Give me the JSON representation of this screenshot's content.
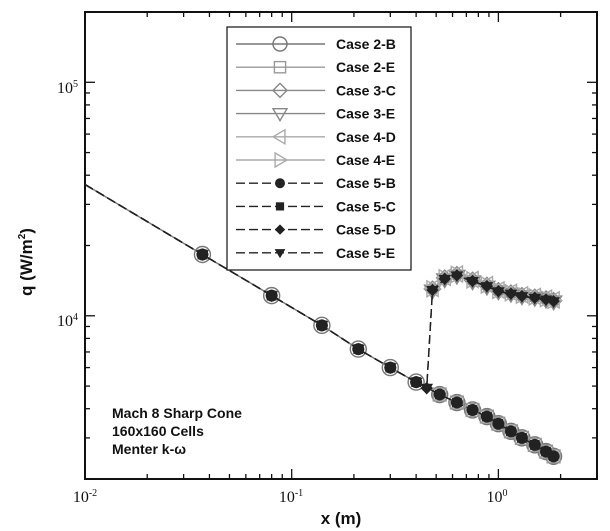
{
  "chart_data": {
    "type": "line",
    "xscale": "log",
    "yscale": "log",
    "xlim": [
      0.01,
      3
    ],
    "ylim": [
      2000,
      200000
    ],
    "xlabel": "x (m)",
    "ylabel": "q (W/m2)",
    "x_ticks": [
      "10-2",
      "10-1",
      "100"
    ],
    "y_ticks": [
      "104",
      "105"
    ],
    "legend_position": "top-center",
    "annotations": [
      "Mach 8 Sharp Cone",
      "160x160 Cells",
      "Menter k-ω"
    ],
    "series": [
      {
        "name": "Case 2-B",
        "marker": "circle",
        "dash": "solid",
        "color": "#777777",
        "x": [
          0.01,
          0.037,
          0.08,
          0.14,
          0.21,
          0.3,
          0.4,
          0.52,
          0.63,
          0.75,
          0.88,
          1.0,
          1.15,
          1.3,
          1.5,
          1.7,
          1.85
        ],
        "y": [
          36500,
          18300,
          12200,
          9100,
          7200,
          6000,
          5200,
          4600,
          4250,
          3950,
          3700,
          3450,
          3200,
          3000,
          2800,
          2620,
          2500
        ]
      },
      {
        "name": "Case 2-E",
        "marker": "square",
        "dash": "solid",
        "color": "#999999",
        "x": [
          0.52,
          0.63,
          0.75,
          0.88,
          1.0,
          1.15,
          1.3,
          1.5,
          1.7,
          1.85
        ],
        "y": [
          4600,
          4250,
          3950,
          3700,
          3450,
          3200,
          3000,
          2800,
          2620,
          2500
        ]
      },
      {
        "name": "Case 3-C",
        "marker": "diamond",
        "dash": "solid",
        "color": "#888888",
        "x": [
          0.48,
          0.55,
          0.63,
          0.75,
          0.88,
          1.0,
          1.15,
          1.3,
          1.5,
          1.7,
          1.85
        ],
        "y": [
          13000,
          14500,
          15000,
          14200,
          13500,
          12800,
          12500,
          12200,
          12000,
          11800,
          11600
        ]
      },
      {
        "name": "Case 3-E",
        "marker": "triangle-down",
        "dash": "solid",
        "color": "#888888",
        "x": [
          0.48,
          0.55,
          0.63,
          0.75,
          0.88,
          1.0,
          1.15,
          1.3,
          1.5,
          1.7,
          1.85
        ],
        "y": [
          12800,
          14300,
          14800,
          14000,
          13300,
          12700,
          12400,
          12100,
          11900,
          11700,
          11500
        ]
      },
      {
        "name": "Case 4-D",
        "marker": "triangle-left",
        "dash": "solid",
        "color": "#aaaaaa",
        "x": [
          0.48,
          0.55,
          0.63,
          0.75,
          0.88,
          1.0,
          1.15,
          1.3,
          1.5,
          1.7,
          1.85
        ],
        "y": [
          13100,
          14600,
          15100,
          14300,
          13600,
          12900,
          12600,
          12300,
          12100,
          11900,
          11700
        ]
      },
      {
        "name": "Case 4-E",
        "marker": "triangle-right",
        "dash": "solid",
        "color": "#aaaaaa",
        "x": [
          0.48,
          0.55,
          0.63,
          0.75,
          0.88,
          1.0,
          1.15,
          1.3,
          1.5,
          1.7,
          1.85
        ],
        "y": [
          13050,
          14550,
          15050,
          14250,
          13550,
          12850,
          12550,
          12250,
          12050,
          11850,
          11650
        ]
      },
      {
        "name": "Case 5-B",
        "marker": "filled-circle",
        "dash": "dashed",
        "color": "#222222",
        "x": [
          0.01,
          0.037,
          0.08,
          0.14,
          0.21,
          0.3,
          0.4,
          0.52,
          0.63,
          0.75,
          0.88,
          1.0,
          1.15,
          1.3,
          1.5,
          1.7,
          1.85
        ],
        "y": [
          36500,
          18300,
          12200,
          9100,
          7200,
          6000,
          5200,
          4600,
          4250,
          3950,
          3700,
          3450,
          3200,
          3000,
          2800,
          2620,
          2500
        ]
      },
      {
        "name": "Case 5-C",
        "marker": "filled-square",
        "dash": "dashed",
        "color": "#222222",
        "x": [
          0.01,
          0.037,
          0.08,
          0.14,
          0.21,
          0.3,
          0.4,
          0.52,
          0.63,
          0.75,
          0.88,
          1.0,
          1.15,
          1.3,
          1.5,
          1.7,
          1.85
        ],
        "y": [
          36500,
          18300,
          12200,
          9100,
          7200,
          6000,
          5200,
          4600,
          4250,
          3950,
          3700,
          3450,
          3200,
          3000,
          2800,
          2620,
          2500
        ]
      },
      {
        "name": "Case 5-D",
        "marker": "filled-diamond",
        "dash": "dashed",
        "color": "#222222",
        "x": [
          0.01,
          0.037,
          0.08,
          0.14,
          0.21,
          0.3,
          0.4,
          0.45,
          0.48,
          0.55,
          0.63,
          0.75,
          0.88,
          1.0,
          1.15,
          1.3,
          1.5,
          1.7,
          1.85
        ],
        "y": [
          36500,
          18300,
          12200,
          9100,
          7200,
          6000,
          5200,
          4900,
          12900,
          14400,
          14900,
          14100,
          13400,
          12750,
          12450,
          12150,
          11950,
          11750,
          11550
        ]
      },
      {
        "name": "Case 5-E",
        "marker": "filled-triangle-down",
        "dash": "dashed",
        "color": "#222222",
        "x": [
          0.01,
          0.037,
          0.08,
          0.14,
          0.21,
          0.3,
          0.4,
          0.45,
          0.48,
          0.55,
          0.63,
          0.75,
          0.88,
          1.0,
          1.15,
          1.3,
          1.5,
          1.7,
          1.85
        ],
        "y": [
          36500,
          18300,
          12200,
          9100,
          7200,
          6000,
          5200,
          4900,
          12850,
          14350,
          14850,
          14050,
          13350,
          12700,
          12400,
          12100,
          11900,
          11700,
          11500
        ]
      }
    ]
  }
}
